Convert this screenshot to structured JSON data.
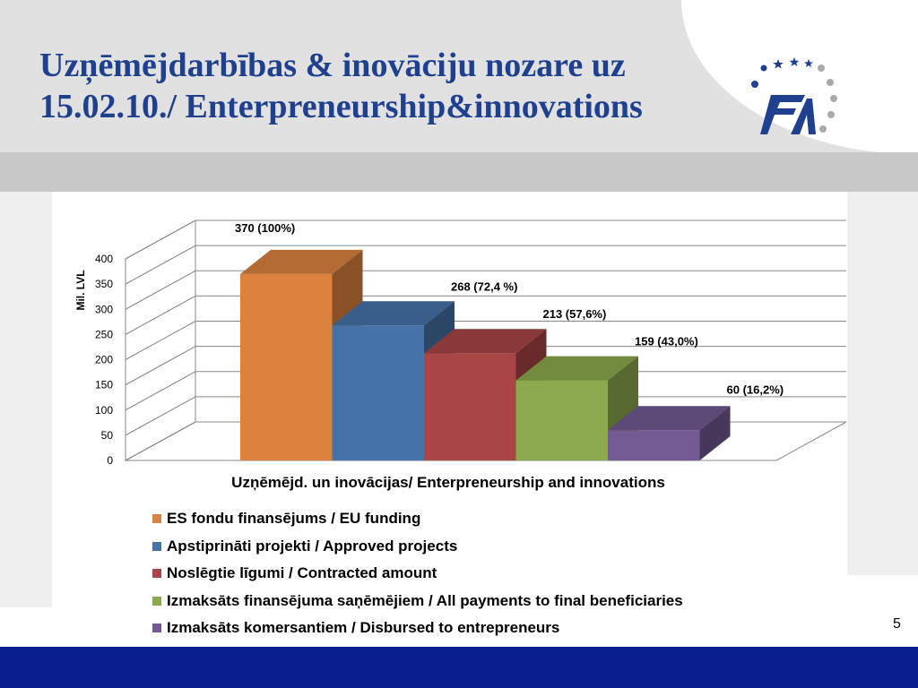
{
  "slide": {
    "title_line1": "Uzņēmējdarbības & inovāciju nozare uz",
    "title_line2": "15.02.10./ Enterpreneurship&innovations",
    "page_number": "5"
  },
  "colors": {
    "title": "#1f3f8f",
    "bottom_band": "#0a1f8f"
  },
  "chart_data": {
    "type": "bar",
    "title": "",
    "xlabel": "Uzņēmējd. un inovācijas/ Enterpreneurship and innovations",
    "ylabel": "Mil. LVL",
    "ylim": [
      0,
      400
    ],
    "yticks": [
      "0",
      "50",
      "100",
      "150",
      "200",
      "250",
      "300",
      "350",
      "400"
    ],
    "grid": true,
    "legend_position": "bottom-left",
    "series": [
      {
        "name": "ES fondu finansējums / EU funding",
        "value": 370,
        "label": "370 (100%)",
        "color": "#dc823e"
      },
      {
        "name": "Apstiprināti projekti / Approved projects",
        "value": 268,
        "label": "268 (72,4 %)",
        "color": "#4573a7"
      },
      {
        "name": "Noslēgtie līgumi / Contracted amount",
        "value": 213,
        "label": "213 (57,6%)",
        "color": "#a94544"
      },
      {
        "name": "Izmaksāts finansējuma saņēmējiem / All payments to final beneficiaries",
        "value": 159,
        "label": "159 (43,0%)",
        "color": "#8ba94d"
      },
      {
        "name": "Izmaksāts komersantiem / Disbursed to entrepreneurs",
        "value": 60,
        "label": "60 (16,2%)",
        "color": "#735a92"
      }
    ]
  }
}
